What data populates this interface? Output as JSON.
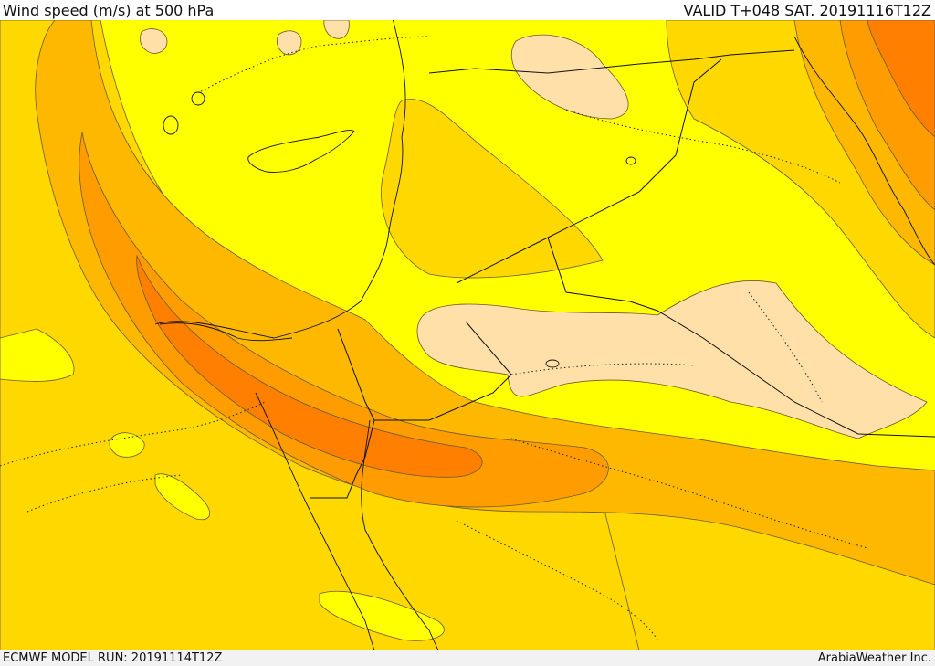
{
  "header": {
    "title": "Wind speed (m/s) at 500 hPa",
    "valid": "VALID T+048 SAT. 20191116T12Z"
  },
  "footer": {
    "model_run": "ECMWF MODEL RUN: 20191114T12Z",
    "credit": "ArabiaWeather Inc."
  },
  "map": {
    "fill_colors": {
      "level_1": "#ffff00",
      "level_2": "#ffd800",
      "level_3": "#ffb800",
      "level_4": "#ff9c00",
      "level_5": "#ff7f00",
      "low": "#ffe0a8",
      "coastline": "#111111"
    }
  }
}
